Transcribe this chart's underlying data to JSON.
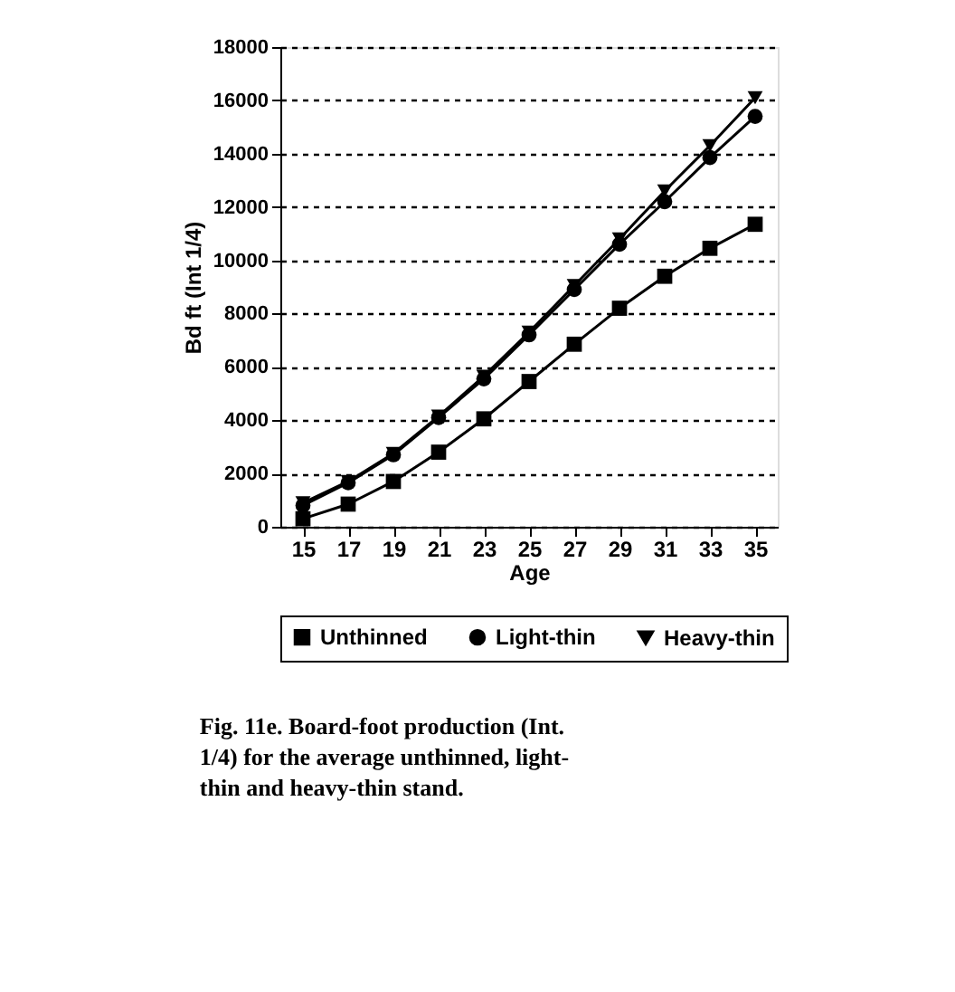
{
  "chart_data": {
    "type": "line",
    "xlabel": "Age",
    "ylabel": "Bd ft (Int 1/4)",
    "x": [
      15,
      17,
      19,
      21,
      23,
      25,
      27,
      29,
      31,
      33,
      35
    ],
    "series": [
      {
        "name": "Unthinned",
        "color": "#000000",
        "marker": "square",
        "values": [
          300,
          850,
          1700,
          2800,
          4050,
          5450,
          6850,
          8200,
          9400,
          10450,
          11350
        ]
      },
      {
        "name": "Light-thin",
        "color": "#000000",
        "marker": "circle",
        "values": [
          800,
          1650,
          2700,
          4100,
          5550,
          7200,
          8900,
          10600,
          12200,
          13850,
          15400
        ]
      },
      {
        "name": "Heavy-thin",
        "color": "#000000",
        "marker": "triangle",
        "values": [
          900,
          1700,
          2750,
          4150,
          5650,
          7300,
          9050,
          10800,
          12600,
          14300,
          16100
        ]
      }
    ],
    "xlim": [
      14,
      36
    ],
    "xticks": [
      15,
      17,
      19,
      21,
      23,
      25,
      27,
      29,
      31,
      33,
      35
    ],
    "ylim": [
      0,
      18000
    ],
    "yticks": [
      0,
      2000,
      4000,
      6000,
      8000,
      10000,
      12000,
      14000,
      16000,
      18000
    ],
    "grid": "y",
    "legend": "bottom",
    "line_style": "solid",
    "annotations": [
      "Fig. 11e.  Board-foot production (Int. 1/4) for the average unthinned, light-thin and heavy-thin stand."
    ]
  }
}
